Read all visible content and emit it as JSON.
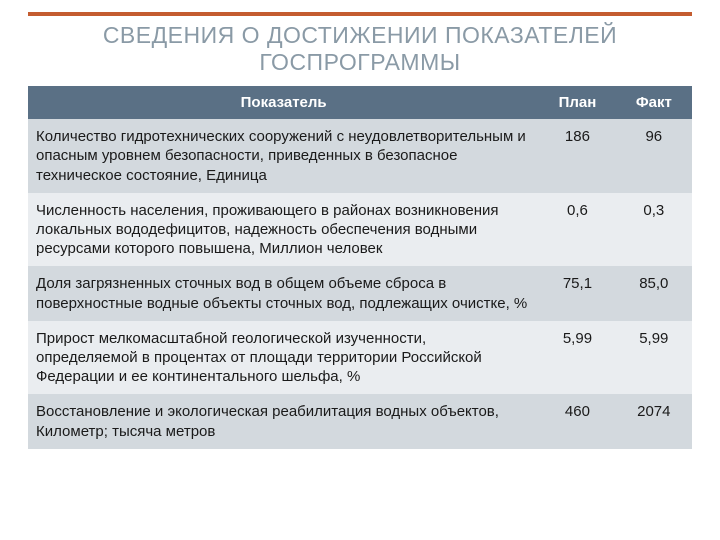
{
  "accent_color": "#c45c30",
  "title": {
    "text": "СВЕДЕНИЯ О ДОСТИЖЕНИИ ПОКАЗАТЕЛЕЙ ГОСПРОГРАММЫ",
    "color": "#8a9aa6",
    "fontsize": 23,
    "line_height": 1.18
  },
  "table": {
    "header_bg": "#5a7085",
    "header_color": "#ffffff",
    "row_bg_odd": "#d3d9de",
    "row_bg_even": "#eaedf0",
    "text_color": "#1a1a1a",
    "fontsize": 15,
    "line_height": 1.28,
    "columns": [
      "Показатель",
      "План",
      "Факт"
    ],
    "rows": [
      {
        "indicator": "Количество гидротехнических сооружений с неудовлетворительным и опасным уровнем безопасности, приведенных в безопасное техническое состояние, Единица",
        "plan": "186",
        "fact": "96"
      },
      {
        "indicator": "Численность населения, проживающего в районах возникновения локальных вододефицитов, надежность обеспечения водными ресурсами которого повышена, Миллион человек",
        "plan": "0,6",
        "fact": "0,3"
      },
      {
        "indicator": "Доля загрязненных сточных вод в общем объеме сброса в поверхностные водные объекты сточных вод, подлежащих очистке, %",
        "plan": "75,1",
        "fact": "85,0"
      },
      {
        "indicator": "Прирост мелкомасштабной геологической изученности, определяемой в процентах от площади территории Российской Федерации и ее континентального шельфа, %",
        "plan": "5,99",
        "fact": "5,99"
      },
      {
        "indicator": "Восстановление и экологическая реабилитация водных объектов, Километр; тысяча метров",
        "plan": "460",
        "fact": "2074"
      }
    ]
  }
}
